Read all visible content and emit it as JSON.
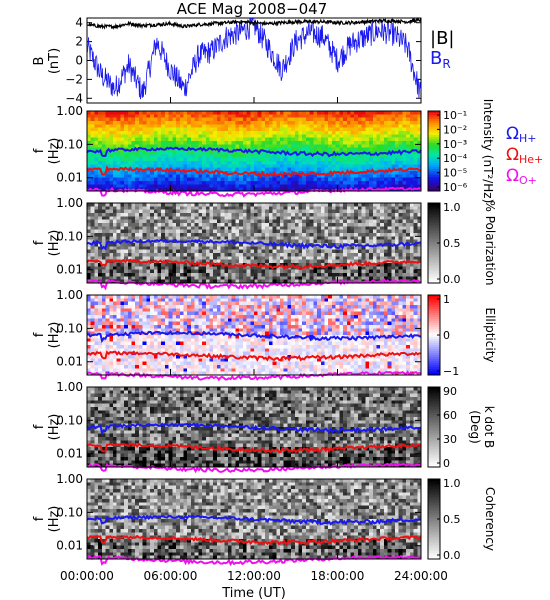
{
  "chart_data": [
    {
      "type": "line",
      "title": "ACE Mag 2008−047",
      "ylabel_main": "B",
      "ylabel_unit": "(nT)",
      "ylim": [
        -4.5,
        4.5
      ],
      "yticks": [
        "4",
        "2",
        "0",
        "−2",
        "−4"
      ],
      "ytick_values": [
        4,
        2,
        0,
        -2,
        -4
      ],
      "xlim": [
        0,
        24
      ],
      "series": [
        {
          "name": "|B|",
          "color": "#000000",
          "x": [
            0,
            1,
            2,
            3,
            4,
            5,
            6,
            7,
            8,
            9,
            10,
            11,
            12,
            13,
            14,
            15,
            16,
            17,
            18,
            19,
            20,
            21,
            22,
            23,
            24
          ],
          "y": [
            3.8,
            3.6,
            3.6,
            3.9,
            3.7,
            3.8,
            3.9,
            3.6,
            3.8,
            3.9,
            4.0,
            4.1,
            4.0,
            3.9,
            4.0,
            4.1,
            4.1,
            4.1,
            4.0,
            4.0,
            4.1,
            4.2,
            4.2,
            4.1,
            4.3
          ]
        },
        {
          "name": "B",
          "subscript": "R",
          "color": "#1a1aee",
          "x": [
            0,
            1,
            2,
            3,
            4,
            5,
            6,
            7,
            8,
            9,
            10,
            11,
            12,
            13,
            14,
            15,
            16,
            17,
            18,
            19,
            20,
            21,
            22,
            23,
            24
          ],
          "y": [
            1.5,
            -1.5,
            -3.0,
            -0.5,
            -3.5,
            2.0,
            -1.0,
            -3.0,
            0.5,
            1.0,
            2.5,
            3.0,
            3.8,
            1.5,
            -1.0,
            2.0,
            3.0,
            2.5,
            0.0,
            1.8,
            2.5,
            3.2,
            2.8,
            1.5,
            -3.8
          ]
        }
      ]
    },
    {
      "type": "heatmap",
      "variable": "Intensity",
      "cbar_label": "Intensity (nT²/Hz)",
      "cbar_ticks": [
        "10⁻¹",
        "10⁻²",
        "10⁻³",
        "10⁻⁴",
        "10⁻⁵",
        "10⁻⁶"
      ],
      "cbar_tick_values": [
        -1,
        -2,
        -3,
        -4,
        -5,
        -6
      ],
      "legend": [
        {
          "base": "Ω",
          "sub": "H+",
          "color": "#1a1aee"
        },
        {
          "base": "Ω",
          "sub": "He+",
          "color": "#ee1111"
        },
        {
          "base": "Ω",
          "sub": "O+",
          "color": "#ee11ee"
        }
      ]
    },
    {
      "type": "heatmap",
      "variable": "% Polarization",
      "cbar_label": "% Polarization",
      "cbar_ticks": [
        "1.0",
        "0.5",
        "0.0"
      ],
      "cbar_tick_values": [
        1.0,
        0.5,
        0.0
      ]
    },
    {
      "type": "heatmap",
      "variable": "Ellipticity",
      "cbar_label": "Ellipticity",
      "cbar_ticks": [
        "1",
        "0",
        "−1"
      ],
      "cbar_tick_values": [
        1,
        0,
        -1
      ]
    },
    {
      "type": "heatmap",
      "variable": "k dot B",
      "cbar_label": "k dot B",
      "cbar_unit": "(Deg)",
      "cbar_ticks": [
        "90",
        "60",
        "30",
        "0"
      ],
      "cbar_tick_values": [
        90,
        60,
        30,
        0
      ]
    },
    {
      "type": "heatmap",
      "variable": "Coherency",
      "cbar_label": "Coherency",
      "cbar_ticks": [
        "1.0",
        "0.5",
        "0.0"
      ],
      "cbar_tick_values": [
        1.0,
        0.5,
        0.0
      ]
    }
  ],
  "common": {
    "ylabel_main": "f",
    "ylabel_unit": "(Hz)",
    "freq_ticks": [
      "1.00",
      "0.10",
      "0.01"
    ],
    "freq_tick_values": [
      1.0,
      0.1,
      0.01
    ],
    "freq_range_hz": [
      0.004,
      1.0
    ],
    "xticks": [
      "00:00:00",
      "06:00:00",
      "12:00:00",
      "18:00:00",
      "24:00:00"
    ],
    "xtick_hours": [
      0,
      6,
      12,
      18,
      24
    ],
    "xlabel": "Time (UT)",
    "gyro_lines": [
      {
        "name": "H+",
        "color": "#1a1aee",
        "freq_hz": 0.062
      },
      {
        "name": "He+",
        "color": "#ee1111",
        "freq_hz": 0.0155
      },
      {
        "name": "O+",
        "color": "#ee11ee",
        "freq_hz": 0.0039
      }
    ]
  }
}
